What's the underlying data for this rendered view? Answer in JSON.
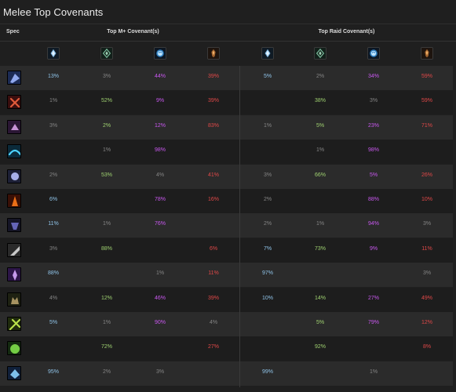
{
  "title": "Melee Top Covenants",
  "headers": {
    "spec": "Spec",
    "mplus": "Top M+ Covenant(s)",
    "raid": "Top Raid Covenant(s)"
  },
  "covenant_icons": [
    "kyrian-icon",
    "night-fae-icon",
    "necrolord-icon",
    "venthyr-icon"
  ],
  "rows": [
    {
      "spec_icon": "frost-dk-icon",
      "mplus": [
        "13%",
        "3%",
        "44%",
        "39%"
      ],
      "raid": [
        "5%",
        "2%",
        "34%",
        "59%"
      ]
    },
    {
      "spec_icon": "fury-warrior-icon",
      "mplus": [
        "1%",
        "52%",
        "9%",
        "39%"
      ],
      "raid": [
        "",
        "38%",
        "3%",
        "59%"
      ]
    },
    {
      "spec_icon": "outlaw-rogue-icon",
      "mplus": [
        "3%",
        "2%",
        "12%",
        "83%"
      ],
      "raid": [
        "1%",
        "5%",
        "23%",
        "71%"
      ]
    },
    {
      "spec_icon": "windwalker-icon",
      "mplus": [
        "",
        "1%",
        "98%",
        ""
      ],
      "raid": [
        "",
        "1%",
        "98%",
        ""
      ]
    },
    {
      "spec_icon": "unholy-dk-icon",
      "mplus": [
        "2%",
        "53%",
        "4%",
        "41%"
      ],
      "raid": [
        "3%",
        "66%",
        "5%",
        "26%"
      ]
    },
    {
      "spec_icon": "havoc-dh-icon",
      "mplus": [
        "6%",
        "",
        "78%",
        "16%"
      ],
      "raid": [
        "2%",
        "",
        "88%",
        "10%"
      ]
    },
    {
      "spec_icon": "subtlety-icon",
      "mplus": [
        "11%",
        "1%",
        "76%",
        ""
      ],
      "raid": [
        "2%",
        "1%",
        "94%",
        "3%"
      ]
    },
    {
      "spec_icon": "arms-warrior-icon",
      "mplus": [
        "3%",
        "88%",
        "",
        "6%"
      ],
      "raid": [
        "7%",
        "73%",
        "9%",
        "11%"
      ]
    },
    {
      "spec_icon": "retribution-icon",
      "mplus": [
        "88%",
        "",
        "1%",
        "11%"
      ],
      "raid": [
        "97%",
        "",
        "",
        "3%"
      ]
    },
    {
      "spec_icon": "feral-druid-icon",
      "mplus": [
        "4%",
        "12%",
        "46%",
        "39%"
      ],
      "raid": [
        "10%",
        "14%",
        "27%",
        "49%"
      ]
    },
    {
      "spec_icon": "survival-icon",
      "mplus": [
        "5%",
        "1%",
        "90%",
        "4%"
      ],
      "raid": [
        "",
        "5%",
        "79%",
        "12%"
      ]
    },
    {
      "spec_icon": "assassination-icon",
      "mplus": [
        "",
        "72%",
        "",
        "27%"
      ],
      "raid": [
        "",
        "92%",
        "",
        "8%"
      ]
    },
    {
      "spec_icon": "enhancement-icon",
      "mplus": [
        "95%",
        "2%",
        "3%",
        ""
      ],
      "raid": [
        "99%",
        "",
        "1%",
        ""
      ]
    }
  ],
  "colors": {
    "kyrian": "#8fc3e8",
    "night_fae": "#9fd170",
    "necrolord": "#c958f0",
    "venthyr": "#e04848",
    "muted": "#858585"
  },
  "color_classes": [
    [
      "c-kyrian",
      "c-grey",
      "c-necro",
      "c-red"
    ],
    [
      "c-grey",
      "c-nightfae",
      "c-necro",
      "c-red"
    ],
    [
      "c-grey",
      "c-nightfae",
      "c-necro",
      "c-red"
    ],
    [
      "c-grey",
      "c-grey",
      "c-necro",
      "c-grey"
    ],
    [
      "c-grey",
      "c-nightfae",
      "c-grey",
      "c-red"
    ],
    [
      "c-kyrian",
      "c-grey",
      "c-necro",
      "c-red"
    ],
    [
      "c-kyrian",
      "c-grey",
      "c-necro",
      "c-grey"
    ],
    [
      "c-grey",
      "c-nightfae",
      "c-grey",
      "c-red"
    ],
    [
      "c-kyrian",
      "c-grey",
      "c-grey",
      "c-red"
    ],
    [
      "c-grey",
      "c-nightfae",
      "c-necro",
      "c-red"
    ],
    [
      "c-kyrian",
      "c-grey",
      "c-necro",
      "c-grey"
    ],
    [
      "c-grey",
      "c-nightfae",
      "c-grey",
      "c-red"
    ],
    [
      "c-kyrian",
      "c-grey",
      "c-grey",
      "c-grey"
    ]
  ],
  "raid_color_classes": [
    [
      "c-kyrian",
      "c-grey",
      "c-necro",
      "c-red"
    ],
    [
      "c-grey",
      "c-nightfae",
      "c-grey",
      "c-red"
    ],
    [
      "c-grey",
      "c-nightfae",
      "c-necro",
      "c-red"
    ],
    [
      "c-grey",
      "c-grey",
      "c-necro",
      "c-grey"
    ],
    [
      "c-grey",
      "c-nightfae",
      "c-necro",
      "c-red"
    ],
    [
      "c-grey",
      "c-grey",
      "c-necro",
      "c-red"
    ],
    [
      "c-grey",
      "c-grey",
      "c-necro",
      "c-grey"
    ],
    [
      "c-kyrian",
      "c-nightfae",
      "c-necro",
      "c-red"
    ],
    [
      "c-kyrian",
      "c-grey",
      "c-grey",
      "c-grey"
    ],
    [
      "c-kyrian",
      "c-nightfae",
      "c-necro",
      "c-red"
    ],
    [
      "c-grey",
      "c-nightfae",
      "c-necro",
      "c-red"
    ],
    [
      "c-grey",
      "c-nightfae",
      "c-grey",
      "c-red"
    ],
    [
      "c-kyrian",
      "c-grey",
      "c-grey",
      "c-grey"
    ]
  ]
}
